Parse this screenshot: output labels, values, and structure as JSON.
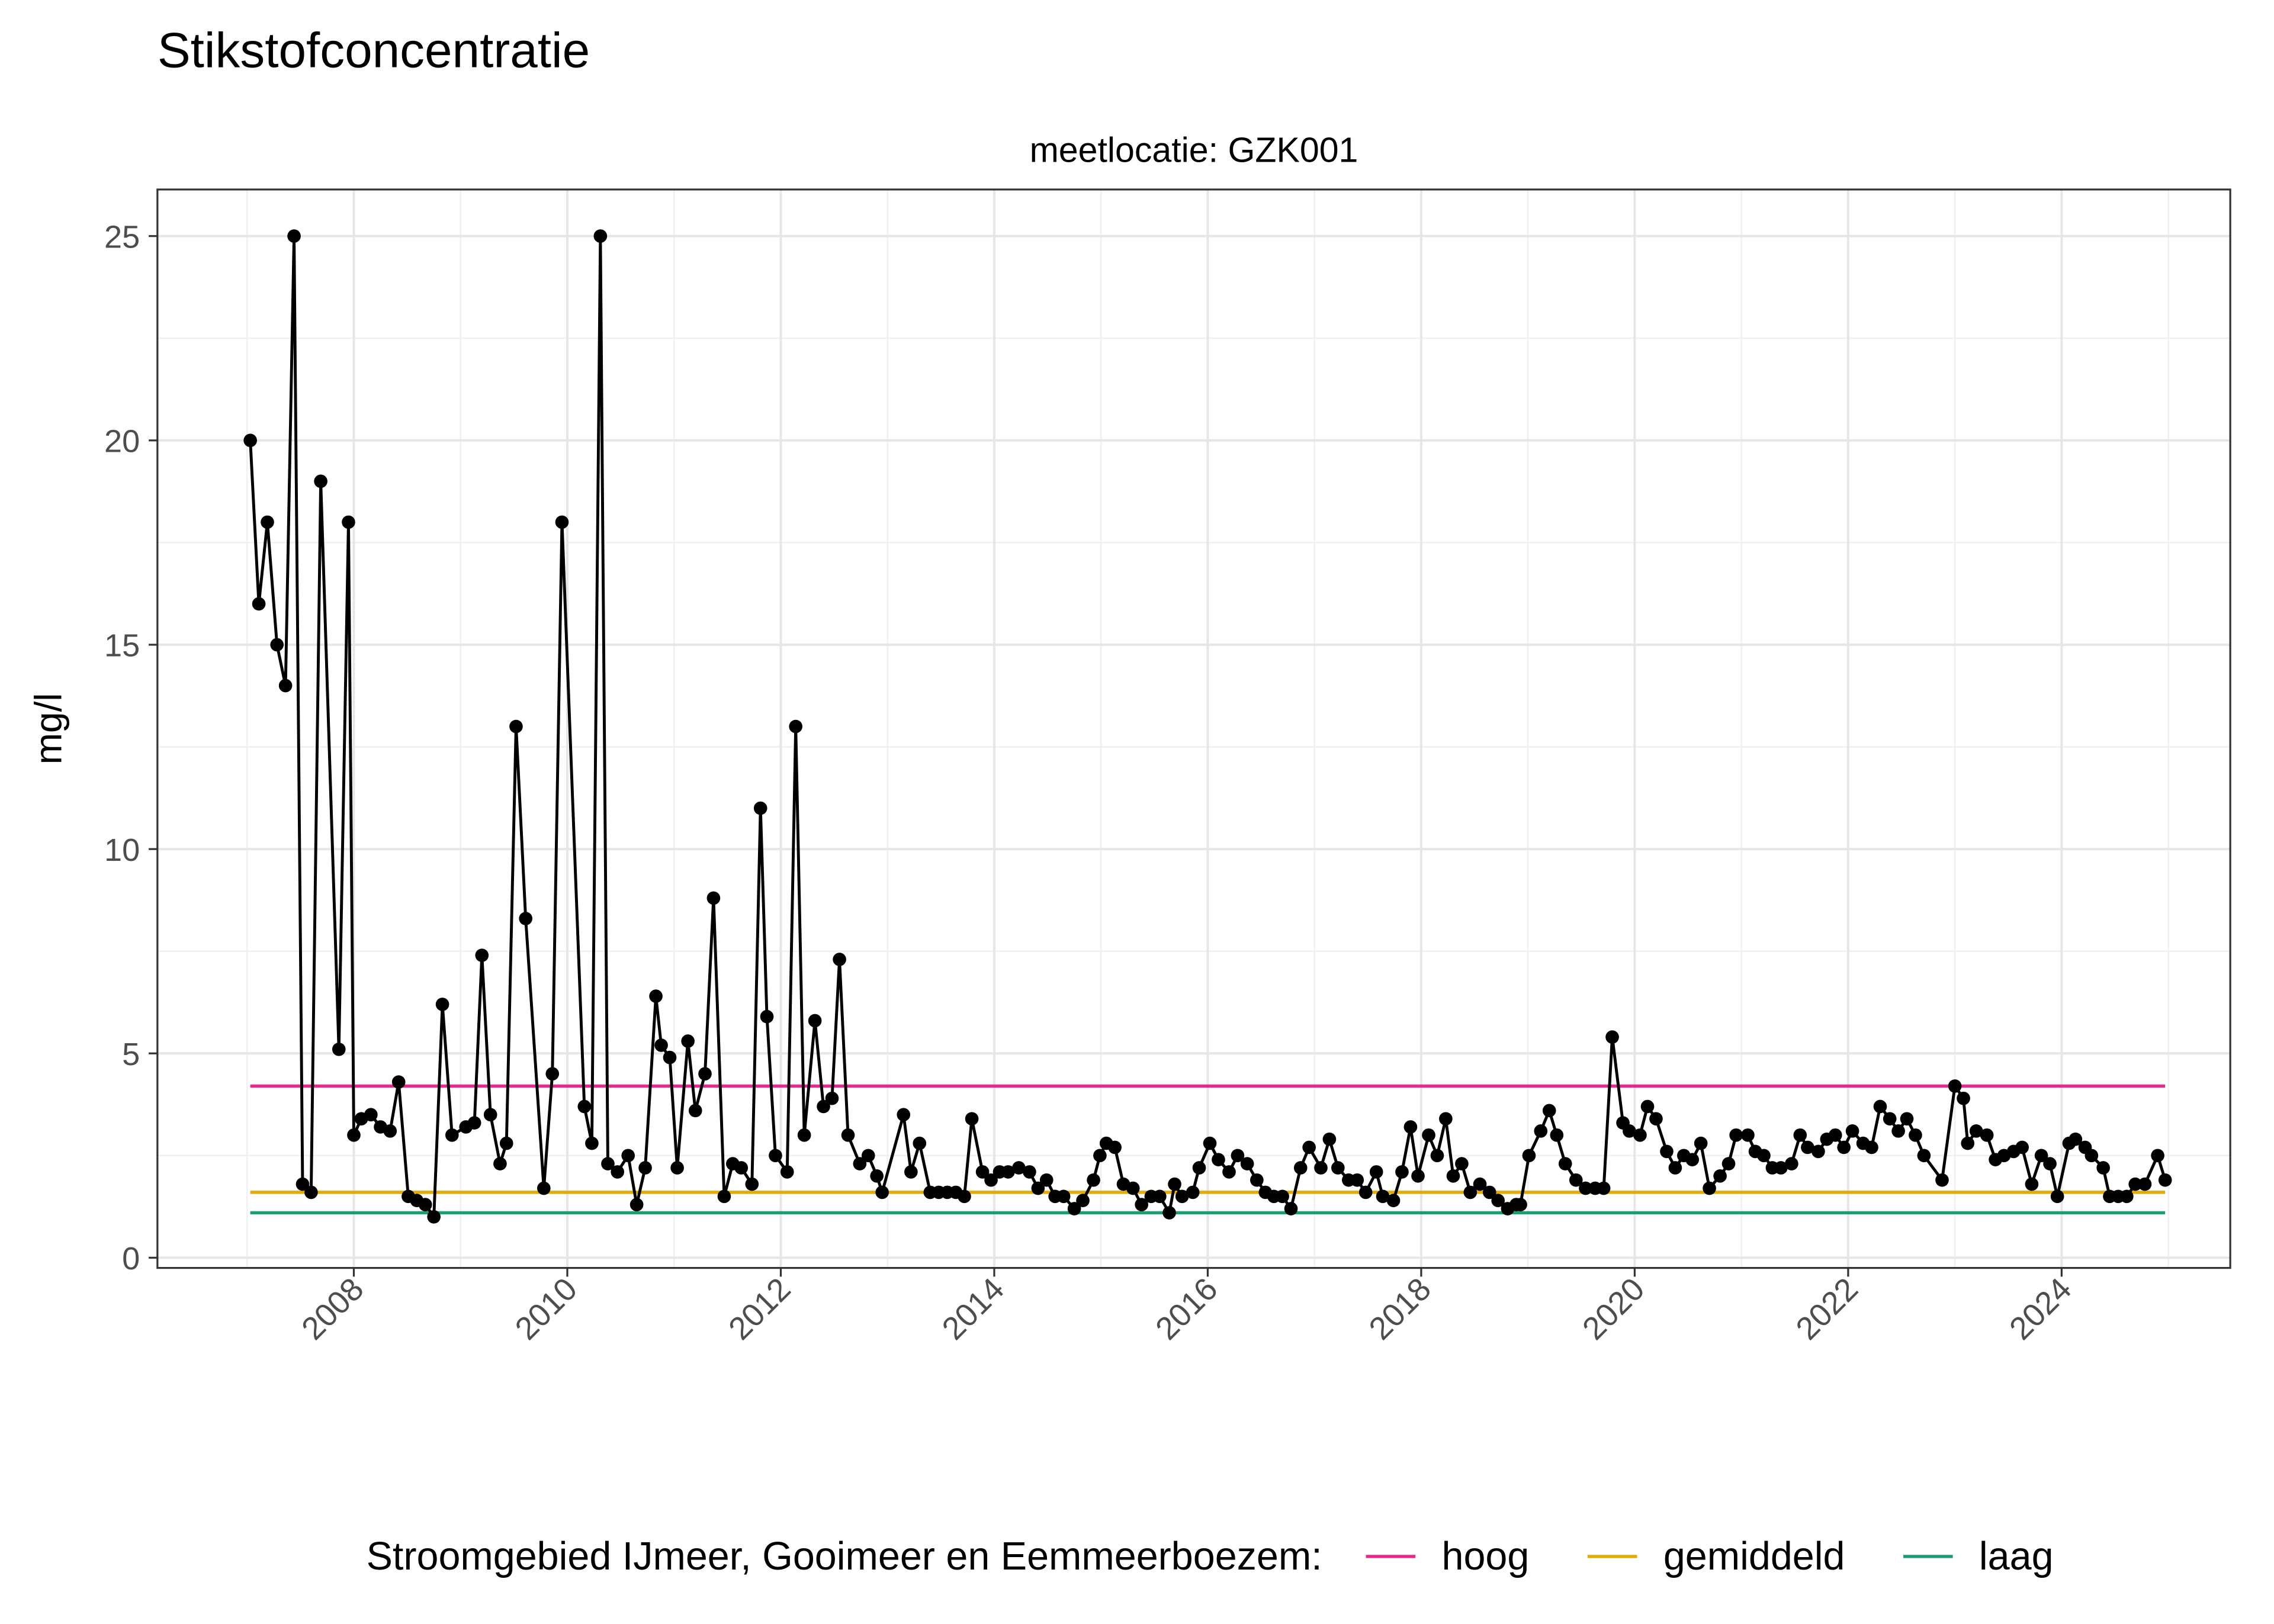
{
  "chart_data": {
    "type": "line",
    "title": "Stikstofconcentratie",
    "subtitle": "meetlocatie: GZK001",
    "y_label": "mg/l",
    "legend_title": "Stroomgebied IJmeer, Gooimeer en Eemmeerboezem:",
    "legend_position": "bottom",
    "grid": true,
    "xlim": [
      2006.16,
      2025.58
    ],
    "xticks": [
      2008,
      2010,
      2012,
      2014,
      2016,
      2018,
      2020,
      2022,
      2024
    ],
    "ylim": [
      -0.25,
      26.14
    ],
    "yticks": [
      0,
      5,
      10,
      15,
      20,
      25
    ],
    "series": [
      {
        "color": "#000000",
        "markers": true,
        "x": [
          2007.03,
          2007.11,
          2007.19,
          2007.28,
          2007.36,
          2007.44,
          2007.52,
          2007.6,
          2007.69,
          2007.86,
          2007.95,
          2008.0,
          2008.07,
          2008.16,
          2008.25,
          2008.34,
          2008.42,
          2008.51,
          2008.59,
          2008.67,
          2008.75,
          2008.83,
          2008.92,
          2009.05,
          2009.13,
          2009.2,
          2009.28,
          2009.37,
          2009.43,
          2009.52,
          2009.61,
          2009.78,
          2009.86,
          2009.95,
          2010.16,
          2010.23,
          2010.31,
          2010.38,
          2010.47,
          2010.57,
          2010.65,
          2010.73,
          2010.83,
          2010.88,
          2010.96,
          2011.03,
          2011.13,
          2011.2,
          2011.29,
          2011.37,
          2011.47,
          2011.55,
          2011.63,
          2011.73,
          2011.81,
          2011.87,
          2011.95,
          2012.06,
          2012.14,
          2012.22,
          2012.32,
          2012.4,
          2012.48,
          2012.55,
          2012.63,
          2012.74,
          2012.82,
          2012.9,
          2012.95,
          2013.15,
          2013.22,
          2013.3,
          2013.4,
          2013.48,
          2013.56,
          2013.64,
          2013.72,
          2013.79,
          2013.89,
          2013.97,
          2014.05,
          2014.13,
          2014.23,
          2014.33,
          2014.41,
          2014.49,
          2014.57,
          2014.65,
          2014.75,
          2014.83,
          2014.93,
          2014.99,
          2015.05,
          2015.13,
          2015.21,
          2015.3,
          2015.38,
          2015.47,
          2015.55,
          2015.64,
          2015.69,
          2015.76,
          2015.86,
          2015.92,
          2016.02,
          2016.1,
          2016.2,
          2016.28,
          2016.37,
          2016.46,
          2016.54,
          2016.62,
          2016.7,
          2016.78,
          2016.87,
          2016.95,
          2017.06,
          2017.14,
          2017.22,
          2017.32,
          2017.4,
          2017.48,
          2017.58,
          2017.64,
          2017.74,
          2017.82,
          2017.9,
          2017.97,
          2018.07,
          2018.15,
          2018.23,
          2018.3,
          2018.38,
          2018.46,
          2018.55,
          2018.64,
          2018.72,
          2018.81,
          2018.89,
          2018.93,
          2019.01,
          2019.12,
          2019.2,
          2019.27,
          2019.35,
          2019.45,
          2019.54,
          2019.63,
          2019.71,
          2019.79,
          2019.89,
          2019.95,
          2020.05,
          2020.12,
          2020.2,
          2020.3,
          2020.38,
          2020.46,
          2020.54,
          2020.62,
          2020.7,
          2020.8,
          2020.88,
          2020.95,
          2021.06,
          2021.13,
          2021.21,
          2021.29,
          2021.37,
          2021.47,
          2021.55,
          2021.62,
          2021.72,
          2021.8,
          2021.88,
          2021.96,
          2022.04,
          2022.14,
          2022.22,
          2022.3,
          2022.39,
          2022.47,
          2022.55,
          2022.63,
          2022.71,
          2022.88,
          2023.0,
          2023.08,
          2023.12,
          2023.2,
          2023.3,
          2023.38,
          2023.46,
          2023.55,
          2023.63,
          2023.72,
          2023.81,
          2023.89,
          2023.96,
          2024.07,
          2024.13,
          2024.22,
          2024.28,
          2024.39,
          2024.45,
          2024.53,
          2024.61,
          2024.69,
          2024.78,
          2024.9,
          2024.97
        ],
        "values": [
          20,
          16,
          18,
          15,
          14,
          25,
          1.8,
          1.6,
          19,
          5.1,
          18,
          3.0,
          3.4,
          3.5,
          3.2,
          3.1,
          4.3,
          1.5,
          1.4,
          1.3,
          1.0,
          6.2,
          3.0,
          3.2,
          3.3,
          7.4,
          3.5,
          2.3,
          2.8,
          13,
          8.3,
          1.7,
          4.5,
          18,
          3.7,
          2.8,
          25,
          2.3,
          2.1,
          2.5,
          1.3,
          2.2,
          6.4,
          5.2,
          4.9,
          2.2,
          5.3,
          3.6,
          4.5,
          8.8,
          1.5,
          2.3,
          2.2,
          1.8,
          11,
          5.9,
          2.5,
          2.1,
          13,
          3.0,
          5.8,
          3.7,
          3.9,
          7.3,
          3.0,
          2.3,
          2.5,
          2.0,
          1.6,
          3.5,
          2.1,
          2.8,
          1.6,
          1.6,
          1.6,
          1.6,
          1.5,
          3.4,
          2.1,
          1.9,
          2.1,
          2.1,
          2.2,
          2.1,
          1.7,
          1.9,
          1.5,
          1.5,
          1.2,
          1.4,
          1.9,
          2.5,
          2.8,
          2.7,
          1.8,
          1.7,
          1.3,
          1.5,
          1.5,
          1.1,
          1.8,
          1.5,
          1.6,
          2.2,
          2.8,
          2.4,
          2.1,
          2.5,
          2.3,
          1.9,
          1.6,
          1.5,
          1.5,
          1.2,
          2.2,
          2.7,
          2.2,
          2.9,
          2.2,
          1.9,
          1.9,
          1.6,
          2.1,
          1.5,
          1.4,
          2.1,
          3.2,
          2.0,
          3.0,
          2.5,
          3.4,
          2.0,
          2.3,
          1.6,
          1.8,
          1.6,
          1.4,
          1.2,
          1.3,
          1.3,
          2.5,
          3.1,
          3.6,
          3.0,
          2.3,
          1.9,
          1.7,
          1.7,
          1.7,
          5.4,
          3.3,
          3.1,
          3.0,
          3.7,
          3.4,
          2.6,
          2.2,
          2.5,
          2.4,
          2.8,
          1.7,
          2.0,
          2.3,
          3.0,
          3.0,
          2.6,
          2.5,
          2.2,
          2.2,
          2.3,
          3.0,
          2.7,
          2.6,
          2.9,
          3.0,
          2.7,
          3.1,
          2.8,
          2.7,
          3.7,
          3.4,
          3.1,
          3.4,
          3.0,
          2.5,
          1.9,
          4.2,
          3.9,
          2.8,
          3.1,
          3.0,
          2.4,
          2.5,
          2.6,
          2.7,
          1.8,
          2.5,
          2.3,
          1.5,
          2.8,
          2.9,
          2.7,
          2.5,
          2.2,
          1.5,
          1.5,
          1.5,
          1.8,
          1.8,
          2.5,
          1.9
        ]
      },
      {
        "name": "hoog",
        "color": "#e7298a",
        "x": [
          2007.03,
          2024.97
        ],
        "values": [
          4.2,
          4.2
        ]
      },
      {
        "name": "gemiddeld",
        "color": "#e6ab02",
        "x": [
          2007.03,
          2024.97
        ],
        "values": [
          1.6,
          1.6
        ]
      },
      {
        "name": "laag",
        "color": "#1b9e77",
        "x": [
          2007.03,
          2024.97
        ],
        "values": [
          1.1,
          1.1
        ]
      }
    ]
  }
}
